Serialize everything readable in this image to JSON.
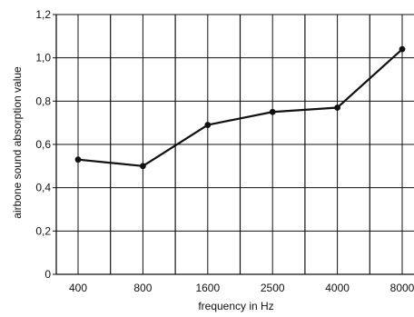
{
  "chart_data": {
    "type": "line",
    "title": "",
    "xlabel": "frequency in Hz",
    "ylabel": "airbone sound absorption value",
    "categories": [
      "400",
      "800",
      "1600",
      "2500",
      "4000",
      "8000"
    ],
    "series": [
      {
        "values": [
          0.53,
          0.5,
          0.69,
          0.75,
          0.77,
          1.04
        ]
      }
    ],
    "ylim": [
      0,
      1.2
    ],
    "yticks": [
      "0",
      "0,2",
      "0,4",
      "0,6",
      "0,8",
      "1,0",
      "1,2"
    ],
    "grid": true,
    "legend": "none",
    "colors": {
      "line": "#111111",
      "grid": "#111111"
    }
  }
}
